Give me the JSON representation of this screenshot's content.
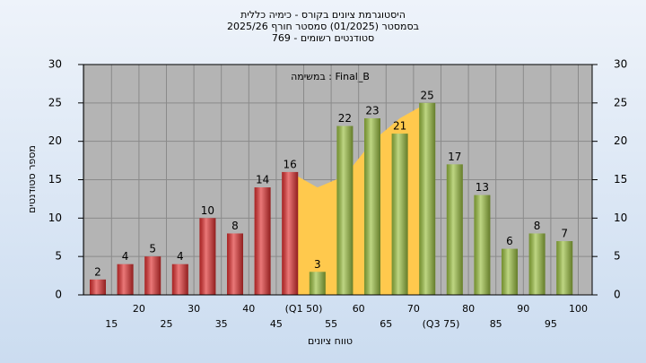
{
  "chart_data": {
    "type": "bar",
    "title": "היסטוגרמת ציונים בקורס - כימיה כללית",
    "subtitle": "בסמסטר  (01/2025)  סמסטר חורף 2025/26",
    "subtitle2": "סטודנטים רשומים - 769",
    "annotation": "במשימה : Final_B",
    "x_label": "טווח ציונים",
    "y_label": "מספר סטודנטים",
    "categories": [
      "15",
      "20",
      "25",
      "30",
      "35",
      "40",
      "45",
      "(Q1 50)",
      "55",
      "60",
      "65",
      "70",
      "(Q3 75)",
      "80",
      "85",
      "90",
      "95",
      "100"
    ],
    "values": [
      2,
      4,
      5,
      4,
      10,
      8,
      14,
      16,
      3,
      22,
      23,
      21,
      25,
      17,
      13,
      6,
      8,
      7
    ],
    "colors": [
      "#e03030",
      "#e03030",
      "#e03030",
      "#e03030",
      "#e03030",
      "#e03030",
      "#e03030",
      "#e03030",
      "#9bc040",
      "#9bc040",
      "#9bc040",
      "#9bc040",
      "#9bc040",
      "#9bc040",
      "#9bc040",
      "#9bc040",
      "#9bc040",
      "#9bc040"
    ],
    "band": {
      "color": "#ffc94d",
      "values": [
        null,
        null,
        null,
        null,
        null,
        null,
        null,
        16,
        14,
        15.5,
        20,
        23,
        25,
        null,
        null,
        null,
        null,
        null
      ]
    },
    "ylim": [
      0,
      30
    ],
    "yticks": [
      0,
      5,
      10,
      15,
      20,
      25,
      30
    ],
    "grid": true
  }
}
